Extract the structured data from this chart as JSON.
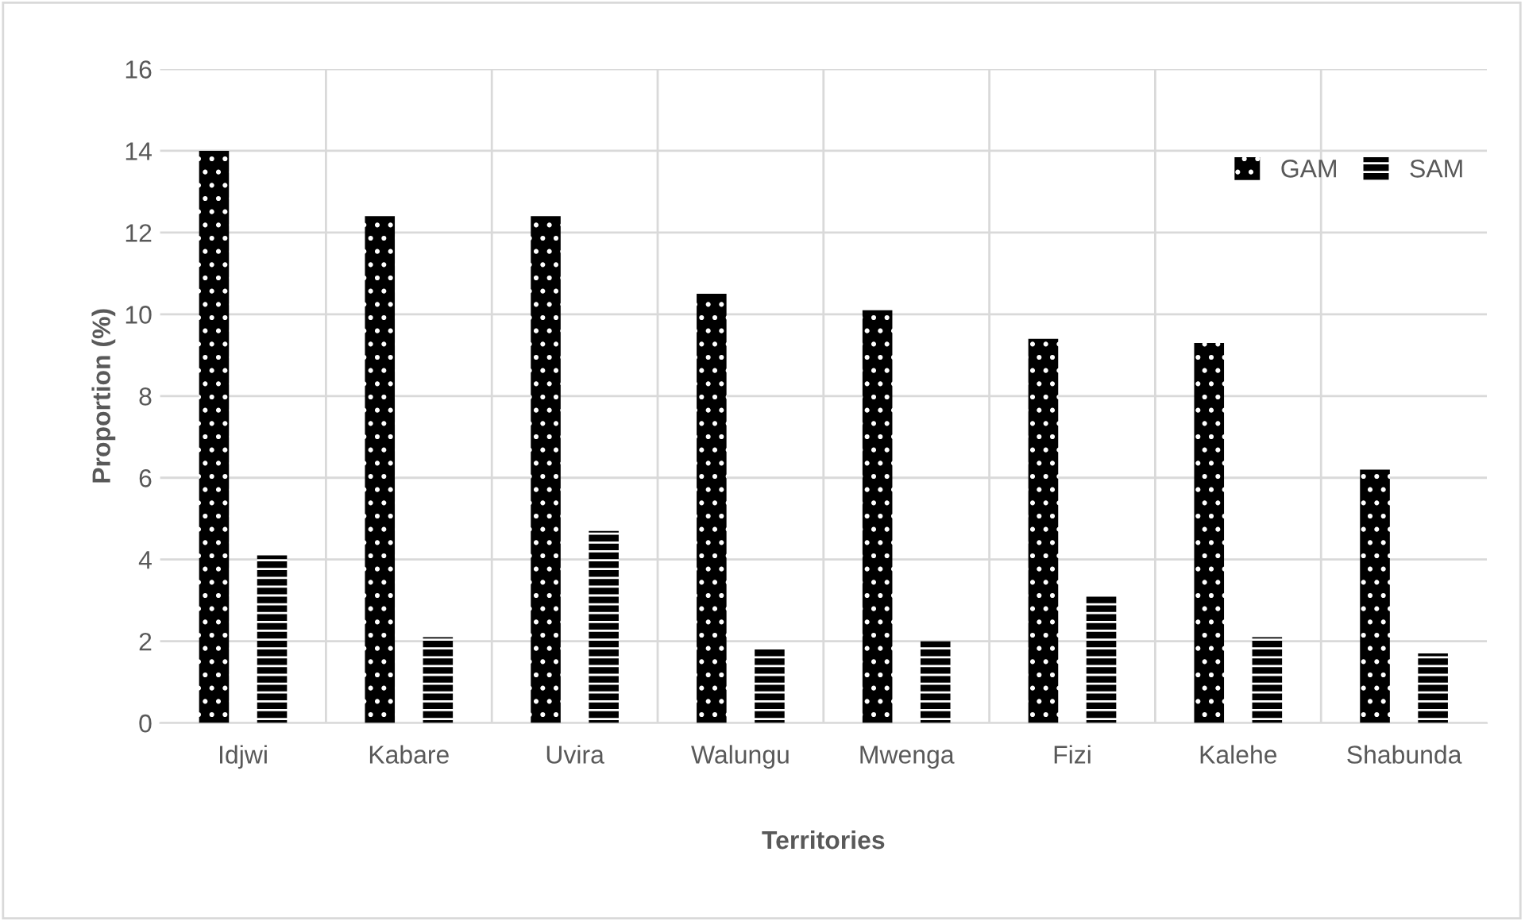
{
  "chart_data": {
    "type": "bar",
    "xlabel": "Territories",
    "ylabel": "Proportion (%)",
    "categories": [
      "Idjwi",
      "Kabare",
      "Uvira",
      "Walungu",
      "Mwenga",
      "Fizi",
      "Kalehe",
      "Shabunda"
    ],
    "series": [
      {
        "name": "GAM",
        "color": "#000000",
        "values": [
          14.0,
          12.4,
          12.4,
          10.5,
          10.1,
          9.4,
          9.3,
          6.2
        ]
      },
      {
        "name": "SAM",
        "color": "#000000",
        "values": [
          4.1,
          2.1,
          4.7,
          1.8,
          2.0,
          3.1,
          2.1,
          1.7
        ]
      }
    ],
    "ylim": [
      0,
      16
    ],
    "yticks": [
      0,
      2,
      4,
      6,
      8,
      10,
      12,
      14,
      16
    ],
    "grid": true,
    "legend": "top right"
  }
}
